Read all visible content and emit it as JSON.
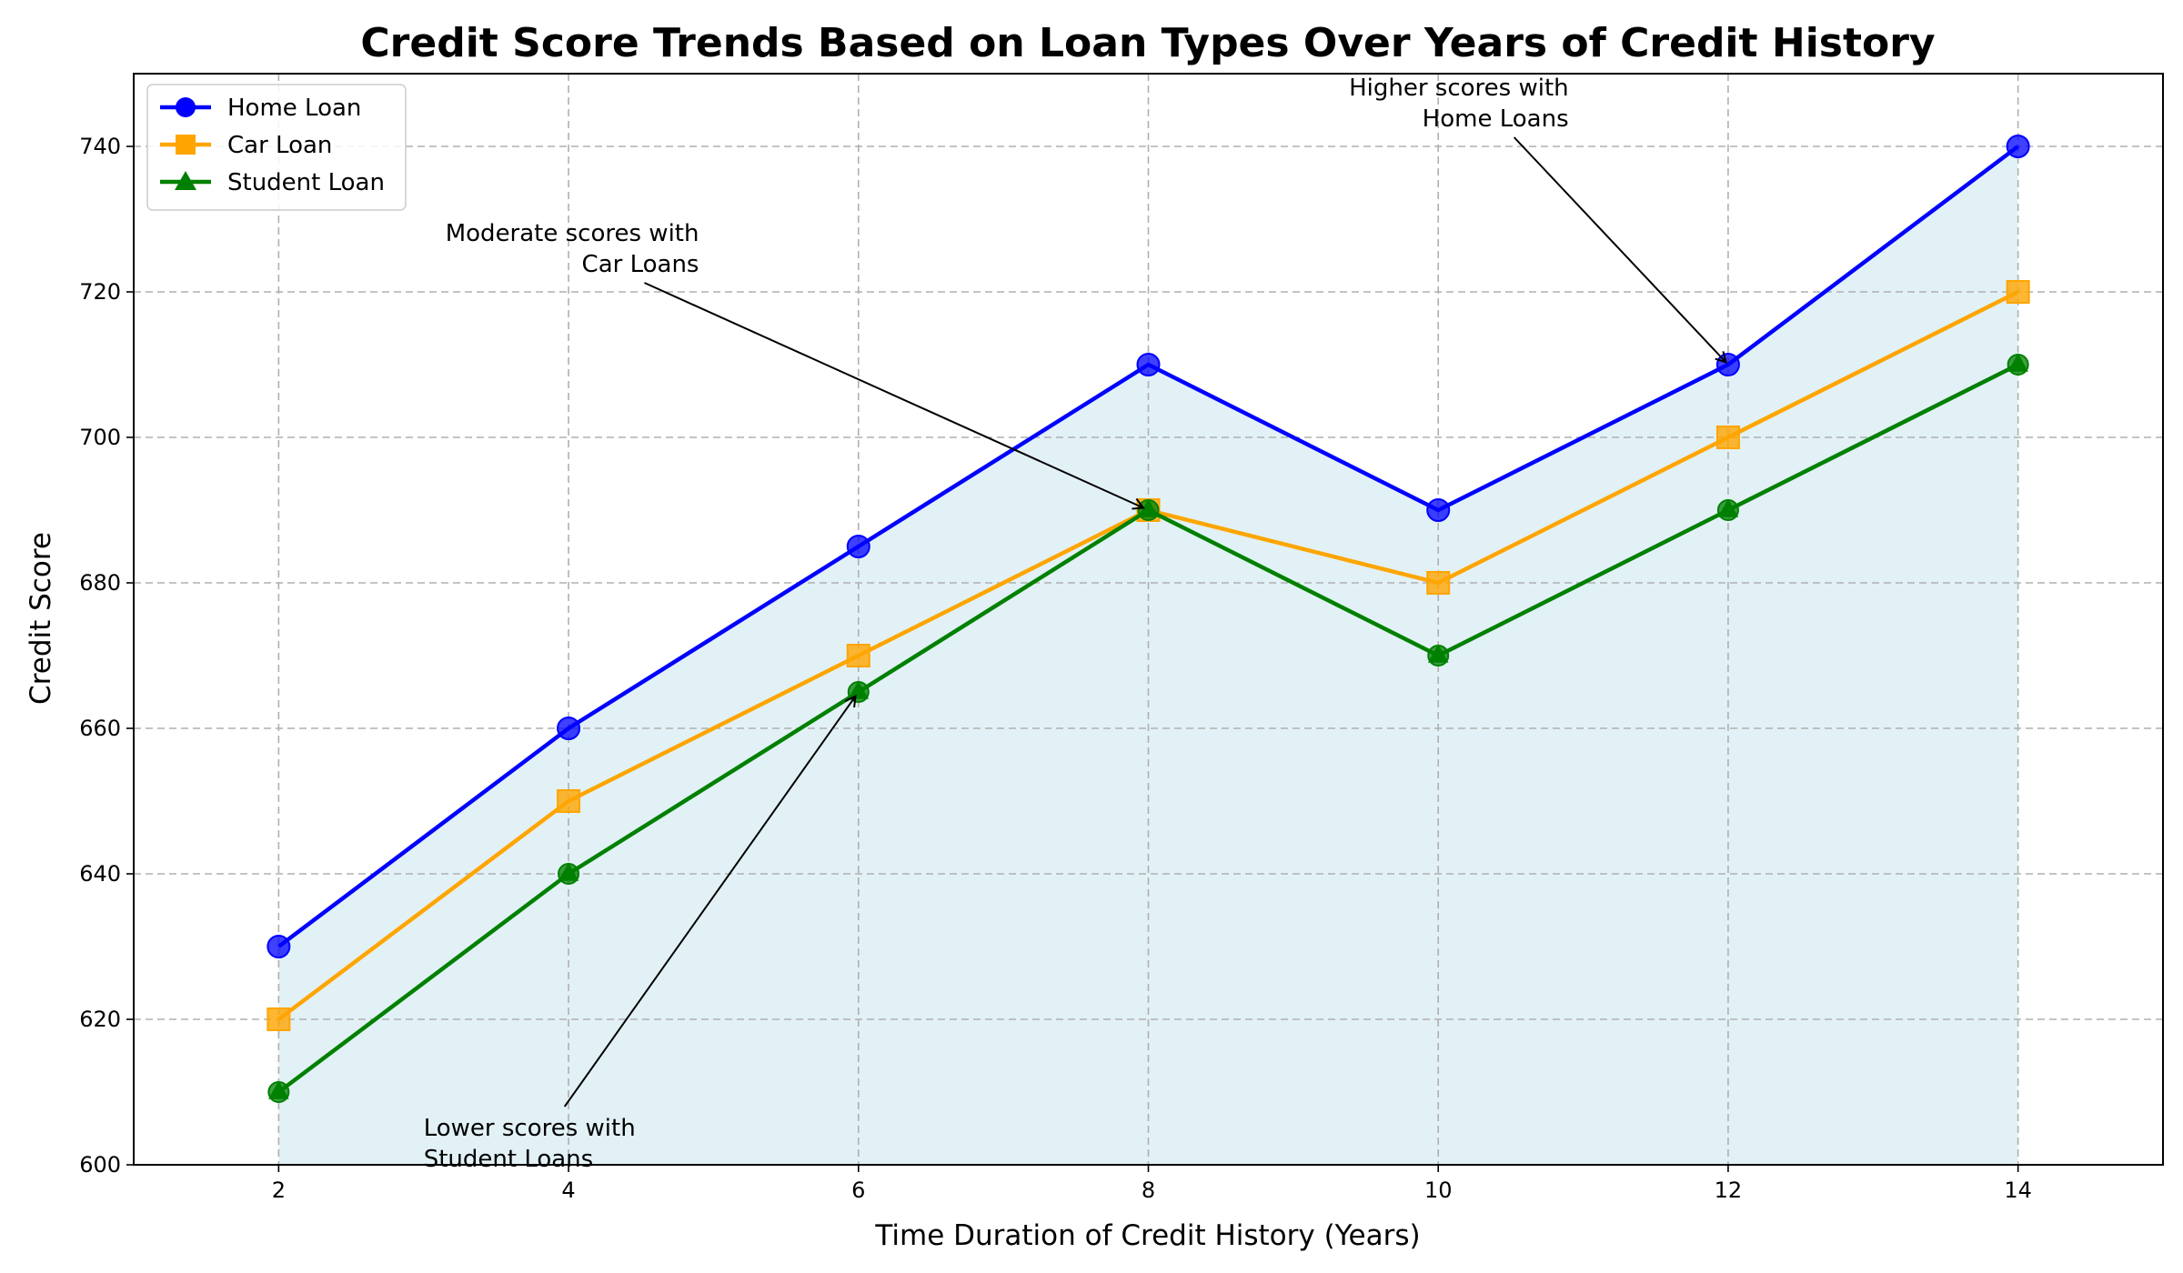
{
  "chart_data": {
    "type": "line",
    "title": "Credit Score Trends Based on Loan Types Over Years of Credit History",
    "xlabel": "Time Duration of Credit History (Years)",
    "ylabel": "Credit Score",
    "x": [
      2,
      4,
      6,
      8,
      10,
      12,
      14
    ],
    "xlim": [
      1,
      15
    ],
    "ylim": [
      600,
      750
    ],
    "xticks": [
      2,
      4,
      6,
      8,
      10,
      12,
      14
    ],
    "yticks": [
      600,
      620,
      640,
      660,
      680,
      700,
      720,
      740
    ],
    "grid": true,
    "legend_position": "top-left",
    "fill_under": {
      "series": "Home Loan",
      "color": "#add8e6"
    },
    "series": [
      {
        "name": "Home Loan",
        "values": [
          630,
          660,
          685,
          710,
          690,
          710,
          740
        ],
        "color": "#0000ff",
        "marker": "circle"
      },
      {
        "name": "Car Loan",
        "values": [
          620,
          650,
          670,
          690,
          680,
          700,
          720
        ],
        "color": "#ffa500",
        "marker": "square"
      },
      {
        "name": "Student Loan",
        "values": [
          610,
          640,
          665,
          690,
          670,
          690,
          710
        ],
        "color": "#008000",
        "marker": "triangle"
      }
    ],
    "annotations": [
      {
        "lines": [
          "Higher scores with",
          "Home Loans"
        ],
        "point": [
          12,
          710
        ],
        "text_at": [
          10.9,
          747
        ],
        "align": "right"
      },
      {
        "lines": [
          "Moderate scores with",
          "Car Loans"
        ],
        "point": [
          8,
          690
        ],
        "text_at": [
          4.9,
          727
        ],
        "align": "right"
      },
      {
        "lines": [
          "Lower scores with",
          "Student Loans"
        ],
        "point": [
          6,
          665
        ],
        "text_at": [
          3,
          604
        ],
        "align": "left"
      }
    ]
  }
}
